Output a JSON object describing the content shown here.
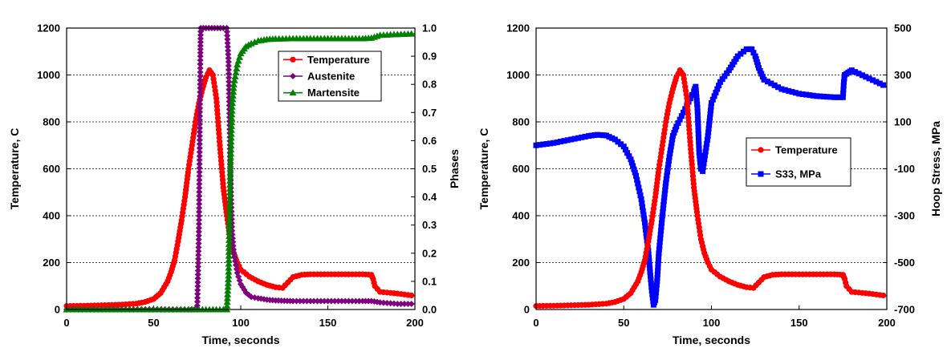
{
  "chart_data": [
    {
      "type": "line",
      "xlabel": "Time, seconds",
      "ylabel": "Temperature, C",
      "y2label": "Phases",
      "xlim": [
        0,
        200
      ],
      "ylim": [
        0,
        1200
      ],
      "y2lim": [
        0,
        1
      ],
      "xticks": [
        "0",
        "50",
        "100",
        "150",
        "200"
      ],
      "yticks": [
        "0",
        "200",
        "400",
        "600",
        "800",
        "1000",
        "1200"
      ],
      "y2ticks": [
        "0.0",
        "0.1",
        "0.2",
        "0.3",
        "0.4",
        "0.5",
        "0.6",
        "0.7",
        "0.8",
        "0.9",
        "1.0"
      ],
      "grid": true,
      "legend_position": "top-right",
      "series": [
        {
          "name": "Temperature",
          "axis": "left",
          "color": "#ff0000",
          "marker": "circle",
          "x": [
            0,
            10,
            20,
            30,
            40,
            45,
            50,
            54,
            58,
            60,
            62,
            64,
            66,
            68,
            70,
            72,
            74,
            76,
            78,
            80,
            82,
            84,
            86,
            88,
            90,
            92,
            94,
            96,
            98,
            100,
            105,
            110,
            115,
            120,
            124,
            127,
            130,
            135,
            140,
            150,
            160,
            170,
            175,
            176,
            177,
            180,
            190,
            200
          ],
          "values": [
            15,
            16,
            18,
            20,
            25,
            32,
            45,
            70,
            120,
            160,
            210,
            290,
            380,
            480,
            600,
            700,
            800,
            880,
            940,
            990,
            1020,
            1000,
            900,
            700,
            520,
            400,
            300,
            240,
            200,
            170,
            140,
            120,
            105,
            95,
            92,
            115,
            138,
            148,
            150,
            150,
            150,
            150,
            148,
            130,
            100,
            75,
            68,
            58
          ]
        },
        {
          "name": "Austenite",
          "axis": "right",
          "color": "#7f007f",
          "marker": "diamond",
          "x": [
            0,
            70,
            75,
            76,
            76.8,
            77,
            80,
            85,
            90,
            92,
            93,
            94,
            95,
            96,
            98,
            100,
            103,
            106,
            110,
            115,
            120,
            125,
            130,
            140,
            150,
            160,
            170,
            175,
            180,
            190,
            200
          ],
          "values": [
            0,
            0,
            0,
            0.29,
            0.9,
            1.0,
            1.0,
            1.0,
            1.0,
            1.0,
            0.88,
            0.5,
            0.28,
            0.2,
            0.13,
            0.09,
            0.06,
            0.045,
            0.04,
            0.035,
            0.032,
            0.031,
            0.03,
            0.03,
            0.03,
            0.03,
            0.03,
            0.03,
            0.025,
            0.02,
            0.02
          ]
        },
        {
          "name": "Martensite",
          "axis": "right",
          "color": "#008000",
          "marker": "triangle",
          "x": [
            0,
            50,
            70,
            80,
            90,
            92,
            93,
            94,
            95,
            96,
            98,
            100,
            103,
            106,
            110,
            115,
            120,
            130,
            140,
            150,
            160,
            170,
            175,
            180,
            190,
            200
          ],
          "values": [
            0,
            0,
            0,
            0,
            0,
            0,
            0.12,
            0.5,
            0.72,
            0.8,
            0.87,
            0.91,
            0.935,
            0.945,
            0.955,
            0.96,
            0.962,
            0.963,
            0.963,
            0.963,
            0.963,
            0.963,
            0.965,
            0.975,
            0.978,
            0.98
          ]
        }
      ]
    },
    {
      "type": "line",
      "xlabel": "Time, seconds",
      "ylabel": "Temperature, C",
      "y2label": "Hoop Stress, MPa",
      "xlim": [
        0,
        200
      ],
      "ylim": [
        0,
        1200
      ],
      "y2lim": [
        -700,
        500
      ],
      "xticks": [
        "0",
        "50",
        "100",
        "150",
        "200"
      ],
      "yticks": [
        "0",
        "200",
        "400",
        "600",
        "800",
        "1000",
        "1200"
      ],
      "y2ticks": [
        "-700",
        "-500",
        "-300",
        "-100",
        "100",
        "300",
        "500"
      ],
      "grid": true,
      "legend_position": "center-right",
      "series": [
        {
          "name": "Temperature",
          "axis": "left",
          "color": "#ff0000",
          "marker": "circle",
          "x": [
            0,
            10,
            20,
            30,
            40,
            45,
            50,
            54,
            58,
            60,
            62,
            64,
            66,
            68,
            70,
            72,
            74,
            76,
            78,
            80,
            82,
            84,
            86,
            88,
            90,
            92,
            94,
            96,
            98,
            100,
            105,
            110,
            115,
            120,
            124,
            127,
            130,
            135,
            140,
            150,
            160,
            170,
            175,
            176,
            177,
            180,
            190,
            200
          ],
          "values": [
            15,
            16,
            18,
            20,
            25,
            32,
            45,
            70,
            120,
            160,
            210,
            290,
            380,
            480,
            600,
            700,
            800,
            880,
            940,
            990,
            1020,
            1000,
            900,
            700,
            520,
            400,
            300,
            240,
            200,
            170,
            140,
            120,
            105,
            95,
            92,
            115,
            138,
            148,
            150,
            150,
            150,
            150,
            148,
            130,
            100,
            75,
            68,
            58
          ]
        },
        {
          "name": "S33, MPa",
          "axis": "right",
          "color": "#0000ff",
          "marker": "square",
          "x": [
            0,
            10,
            20,
            30,
            35,
            40,
            45,
            50,
            54,
            57,
            60,
            62,
            64,
            65,
            66,
            67,
            68,
            69,
            70,
            72,
            74,
            76,
            78,
            80,
            82,
            84,
            86,
            88,
            90,
            91,
            92,
            93,
            94,
            95,
            96,
            98,
            100,
            105,
            110,
            115,
            120,
            123,
            125,
            127,
            130,
            140,
            150,
            160,
            170,
            175,
            175.5,
            176,
            178,
            180,
            190,
            200
          ],
          "values": [
            0,
            10,
            25,
            40,
            45,
            42,
            25,
            -5,
            -60,
            -130,
            -230,
            -330,
            -450,
            -540,
            -620,
            -680,
            -660,
            -580,
            -460,
            -300,
            -160,
            -50,
            40,
            80,
            110,
            140,
            170,
            200,
            230,
            250,
            160,
            -30,
            -100,
            -110,
            -60,
            40,
            180,
            270,
            320,
            380,
            410,
            410,
            380,
            330,
            280,
            240,
            220,
            210,
            205,
            205,
            270,
            300,
            310,
            320,
            285,
            250
          ]
        }
      ]
    }
  ]
}
